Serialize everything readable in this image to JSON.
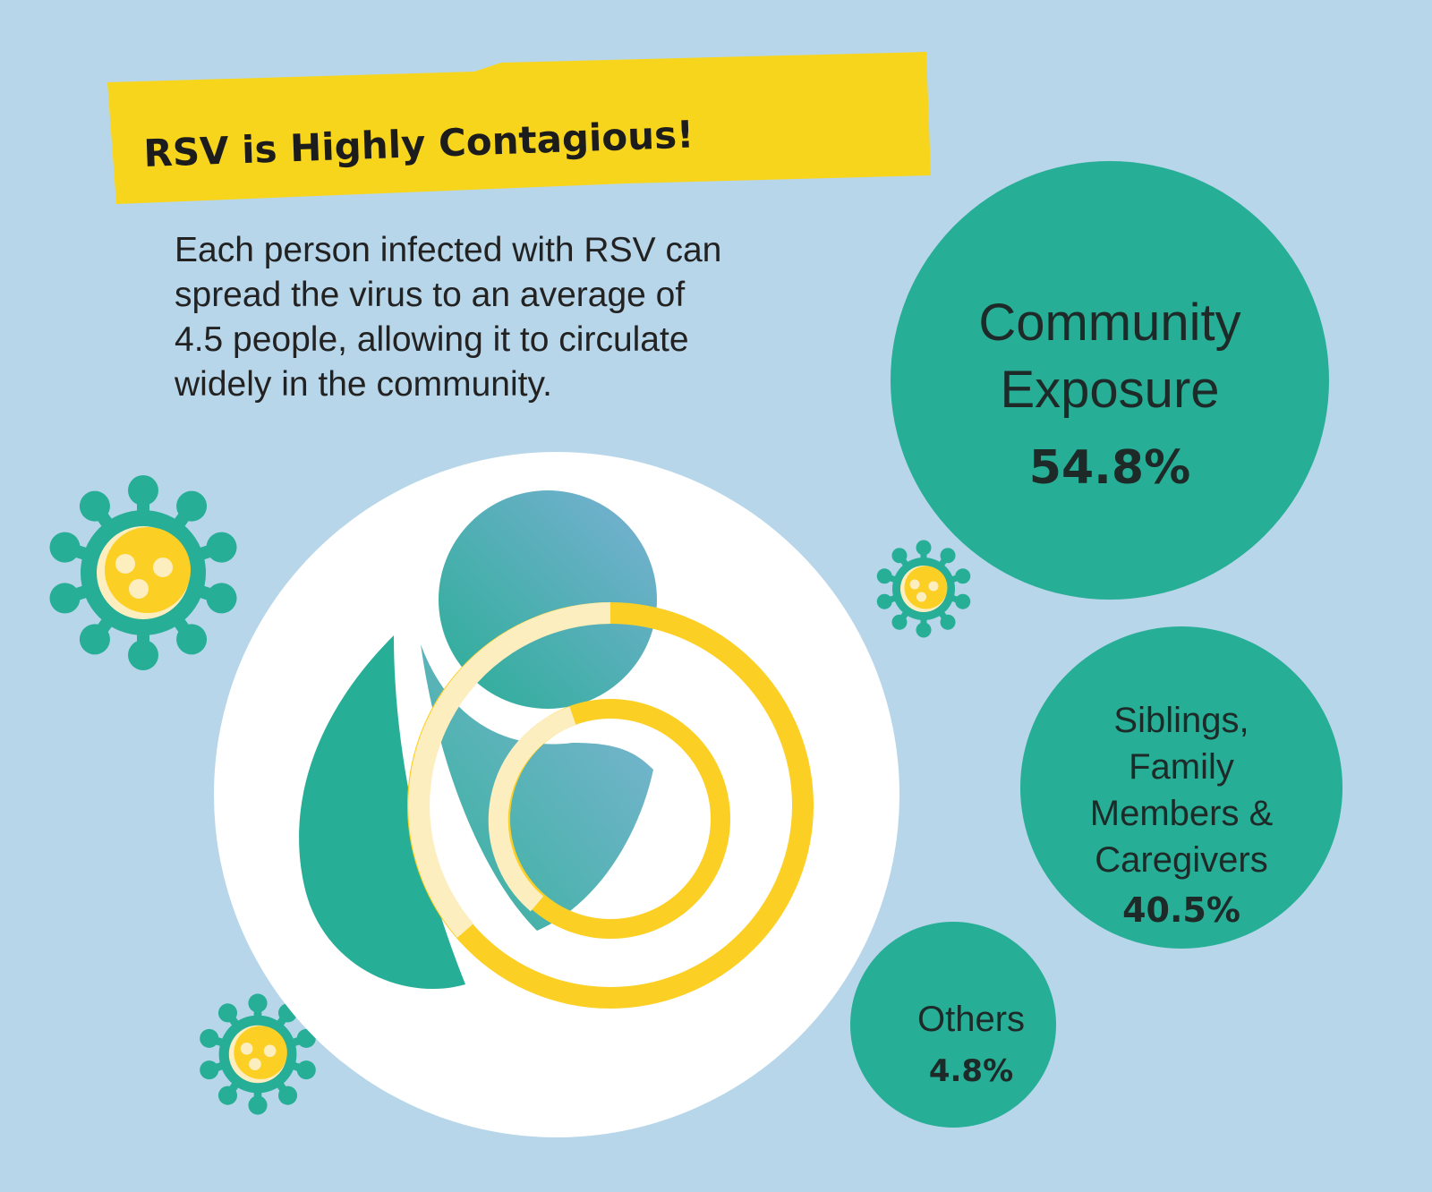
{
  "title": "RSV is Highly Contagious!",
  "description": [
    "Each person infected with RSV can",
    "spread the virus to an average of",
    "4.5 people, allowing it to circulate",
    "widely in the community."
  ],
  "sources": [
    {
      "label_lines": [
        "Community",
        "Exposure"
      ],
      "percent": "54.8%",
      "value": 54.8
    },
    {
      "label_lines": [
        "Siblings,",
        "Family",
        "Members &",
        "Caregivers"
      ],
      "percent": "40.5%",
      "value": 40.5
    },
    {
      "label_lines": [
        "Others"
      ],
      "percent": "4.8%",
      "value": 4.8
    }
  ],
  "colors": {
    "background": "#b8d6ea",
    "banner": "#f7d51c",
    "teal": "#26ae96",
    "blue": "#6fb0d0",
    "yellow": "#fccf24",
    "pale_yellow": "#fdeec0"
  },
  "icons": [
    "virus-icon",
    "virus-icon",
    "virus-icon",
    "person-logo-icon"
  ]
}
